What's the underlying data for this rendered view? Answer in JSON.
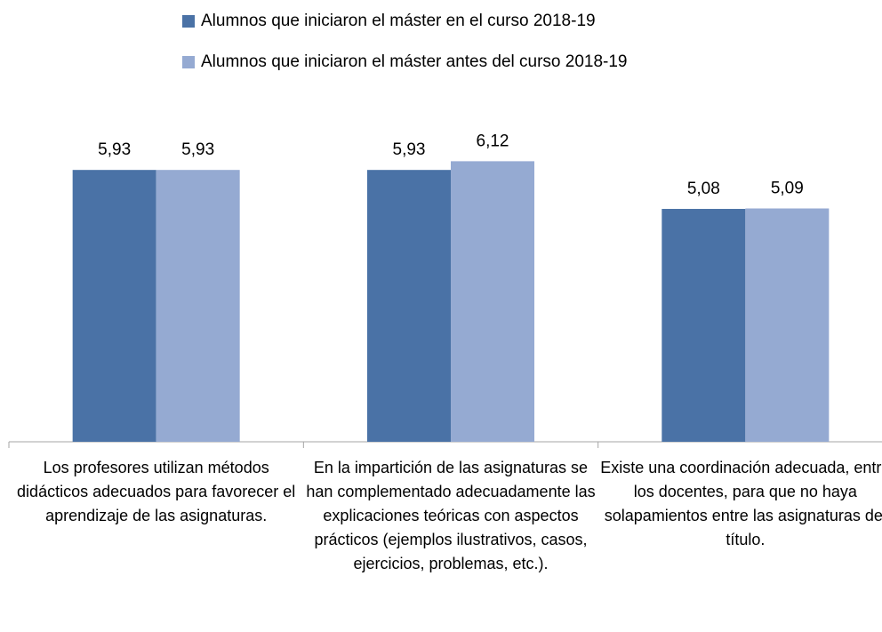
{
  "chart_data": {
    "type": "bar",
    "categories": [
      "Los profesores utilizan métodos didácticos adecuados para favorecer el aprendizaje de las asignaturas.",
      "En la impartición de las asignaturas se han complementado adecuadamente las explicaciones teóricas con aspectos prácticos (ejemplos ilustrativos, casos, ejercicios, problemas, etc.).",
      "Existe una coordinación adecuada, entre los docentes, para que no haya solapamientos entre las asignaturas del título."
    ],
    "series": [
      {
        "name": "Alumnos que iniciaron el máster en el curso 2018-19",
        "color": "#4a72a6",
        "values": [
          5.93,
          5.93,
          5.08
        ],
        "value_labels": [
          "5,93",
          "5,93",
          "5,08"
        ]
      },
      {
        "name": "Alumnos que iniciaron el máster antes del curso 2018-19",
        "color": "#95aad2",
        "values": [
          5.93,
          6.12,
          5.09
        ],
        "value_labels": [
          "5,93",
          "6,12",
          "5,09"
        ]
      }
    ],
    "ylim": [
      0,
      7
    ]
  }
}
